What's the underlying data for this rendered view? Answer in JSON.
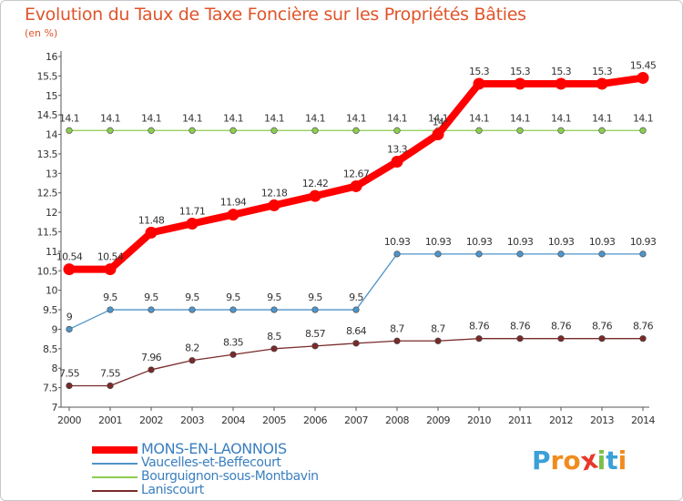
{
  "title": "Evolution du Taux de Taxe Foncière sur les Propriétés Bâties",
  "subtitle": "(en %)",
  "logo": {
    "text": "Proxiti",
    "letters": [
      "P",
      "r",
      "o",
      "x",
      "i",
      "t",
      "i"
    ],
    "colors": [
      "#3aa0d8",
      "#f08c1e",
      "#f08c1e",
      "#e8382a",
      "#7cc04a",
      "#3aa0d8",
      "#f08c1e"
    ]
  },
  "chart_data": {
    "type": "line",
    "title": "Evolution du Taux de Taxe Foncière sur les Propriétés Bâties",
    "ylabel": "(en %)",
    "xlabel": "",
    "x": [
      "2000",
      "2001",
      "2002",
      "2003",
      "2004",
      "2005",
      "2006",
      "2007",
      "2008",
      "2009",
      "2010",
      "2011",
      "2012",
      "2013",
      "2014"
    ],
    "ylim": [
      7,
      16
    ],
    "yticks": [
      "7",
      "7.5",
      "8",
      "8.5",
      "9",
      "9.5",
      "10",
      "10.5",
      "11",
      "11.5",
      "12",
      "12.5",
      "13",
      "13.5",
      "14",
      "14.5",
      "15",
      "15.5",
      "16"
    ],
    "grid": false,
    "legend": "bottom-left",
    "series": [
      {
        "name": "MONS-EN-LAONNOIS",
        "color": "#ff0000",
        "values": [
          10.54,
          10.54,
          11.48,
          11.71,
          11.94,
          12.18,
          12.42,
          12.67,
          13.3,
          14.0,
          15.3,
          15.3,
          15.3,
          15.3,
          15.45
        ],
        "labels": [
          "10.54",
          "10.54",
          "11.48",
          "11.71",
          "11.94",
          "12.18",
          "12.42",
          "12.67",
          "13.3",
          "14",
          "15.3",
          "15.3",
          "15.3",
          "15.3",
          "15.45"
        ]
      },
      {
        "name": "Vaucelles-et-Beffecourt",
        "color": "#4f94c8",
        "values": [
          9,
          9.5,
          9.5,
          9.5,
          9.5,
          9.5,
          9.5,
          9.5,
          10.93,
          10.93,
          10.93,
          10.93,
          10.93,
          10.93,
          10.93
        ],
        "labels": [
          "9",
          "9.5",
          "9.5",
          "9.5",
          "9.5",
          "9.5",
          "9.5",
          "9.5",
          "10.93",
          "10.93",
          "10.93",
          "10.93",
          "10.93",
          "10.93",
          "10.93"
        ]
      },
      {
        "name": "Bourguignon-sous-Montbavin",
        "color": "#8ccc50",
        "values": [
          14.1,
          14.1,
          14.1,
          14.1,
          14.1,
          14.1,
          14.1,
          14.1,
          14.1,
          14.1,
          14.1,
          14.1,
          14.1,
          14.1,
          14.1
        ],
        "labels": [
          "14.1",
          "14.1",
          "14.1",
          "14.1",
          "14.1",
          "14.1",
          "14.1",
          "14.1",
          "14.1",
          "14.1",
          "14.1",
          "14.1",
          "14.1",
          "14.1",
          "14.1"
        ]
      },
      {
        "name": "Laniscourt",
        "color": "#7a2a2a",
        "values": [
          7.55,
          7.55,
          7.96,
          8.2,
          8.35,
          8.5,
          8.57,
          8.64,
          8.7,
          8.7,
          8.76,
          8.76,
          8.76,
          8.76,
          8.76
        ],
        "labels": [
          "7.55",
          "7.55",
          "7.96",
          "8.2",
          "8.35",
          "8.5",
          "8.57",
          "8.64",
          "8.7",
          "8.7",
          "8.76",
          "8.76",
          "8.76",
          "8.76",
          "8.76"
        ]
      }
    ]
  }
}
